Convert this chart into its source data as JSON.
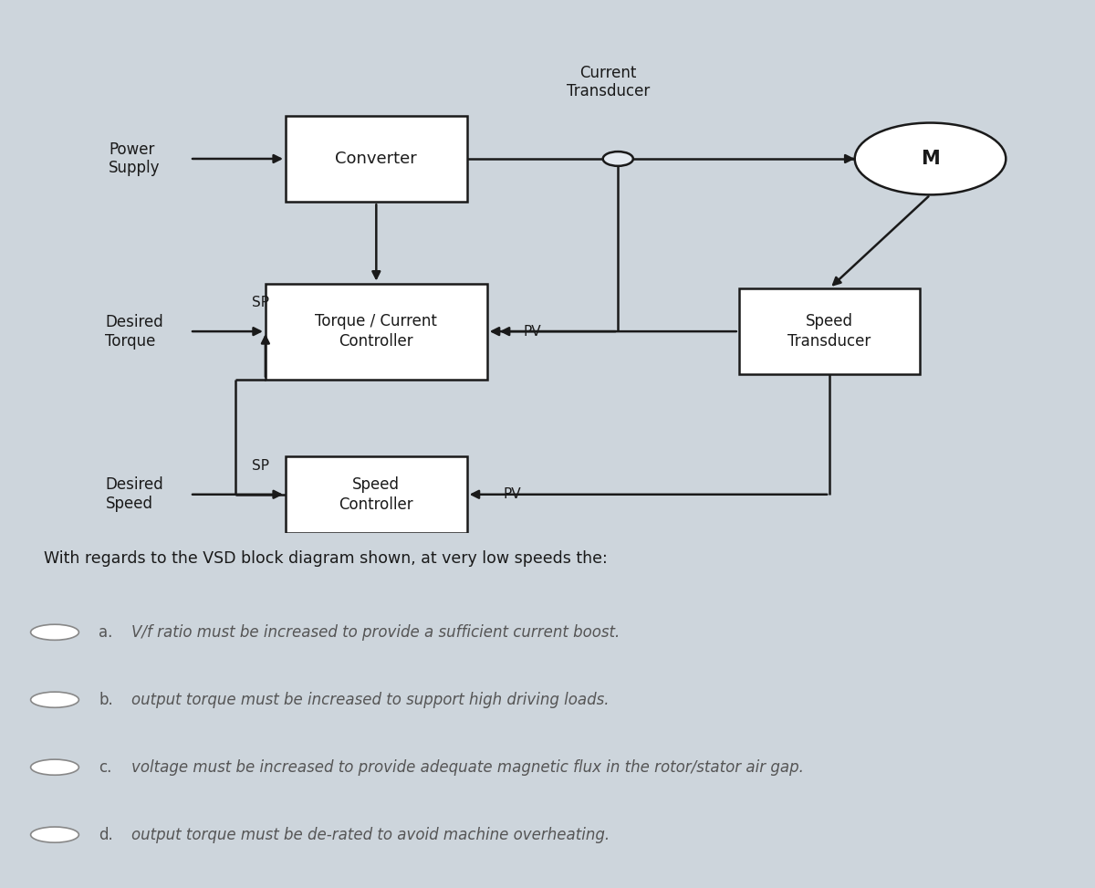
{
  "bg_color": "#cdd5dc",
  "diagram_bg": "#e4eaf0",
  "box_facecolor": "#ffffff",
  "box_edgecolor": "#1a1a1a",
  "text_color": "#1a1a1a",
  "question_bg": "#f5f5f5",
  "question_text": "With regards to the VSD block diagram shown, at very low speeds the:",
  "options": [
    {
      "label": "a.",
      "text": "V/f ratio must be increased to provide a sufficient current boost."
    },
    {
      "label": "b.",
      "text": "output torque must be increased to support high driving loads."
    },
    {
      "label": "c.",
      "text": "voltage must be increased to provide adequate magnetic flux in the rotor/stator air gap."
    },
    {
      "label": "d.",
      "text": "output torque must be de-rated to avoid machine overheating."
    }
  ]
}
